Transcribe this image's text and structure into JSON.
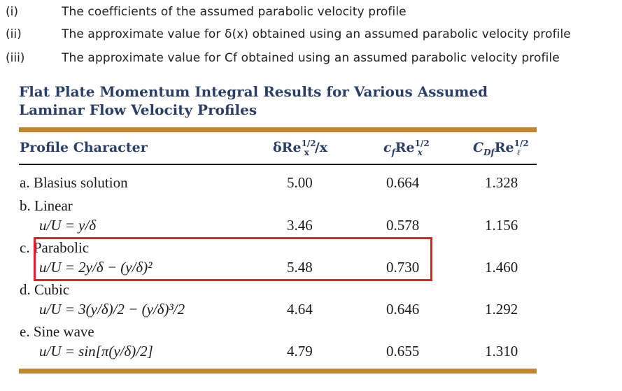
{
  "questions": [
    {
      "num": "(i)",
      "text": "The coefficients of the assumed parabolic velocity profile"
    },
    {
      "num": "(ii)",
      "text": "The approximate value for δ(x) obtained using an assumed parabolic velocity profile"
    },
    {
      "num": "(iii)",
      "text": "The approximate value for Cf obtained using an assumed parabolic velocity profile"
    }
  ],
  "table": {
    "title_line1": "Flat Plate Momentum Integral Results for Various Assumed",
    "title_line2": "Laminar Flow Velocity Profiles",
    "headers": {
      "profile": "Profile Character",
      "delta_main": "δRe",
      "delta_sub": "x",
      "delta_sup": "1/2",
      "delta_tail": "/x",
      "cf_main": "c",
      "cf_sub": "f",
      "cf_mid": "Re",
      "cf_sub2": "x",
      "cf_sup": "1/2",
      "cd_main": "C",
      "cd_sub": "Df",
      "cd_mid": "Re",
      "cd_sub2": "ℓ",
      "cd_sup": "1/2"
    },
    "rows": [
      {
        "name": "a. Blasius solution",
        "formula": "",
        "delta": "5.00",
        "cf": "0.664",
        "cd": "1.328"
      },
      {
        "name": "b. Linear",
        "formula": "u/U = y/δ",
        "delta": "3.46",
        "cf": "0.578",
        "cd": "1.156"
      },
      {
        "name": "c. Parabolic",
        "formula": "u/U = 2y/δ − (y/δ)²",
        "delta": "5.48",
        "cf": "0.730",
        "cd": "1.460"
      },
      {
        "name": "d. Cubic",
        "formula": "u/U = 3(y/δ)/2 − (y/δ)³/2",
        "delta": "4.64",
        "cf": "0.646",
        "cd": "1.292"
      },
      {
        "name": "e. Sine wave",
        "formula": "u/U = sin[π(y/δ)/2]",
        "delta": "4.79",
        "cf": "0.655",
        "cd": "1.310"
      }
    ]
  }
}
